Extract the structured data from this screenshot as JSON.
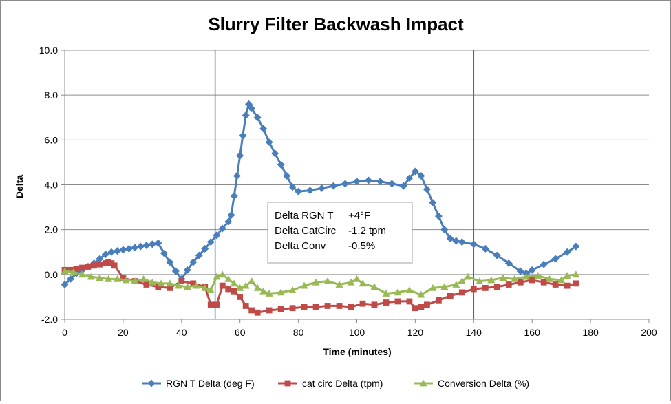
{
  "chart_data": {
    "type": "line",
    "title": "Slurry Filter Backwash Impact",
    "xlabel": "Time (minutes)",
    "ylabel": "Delta",
    "xlim": [
      0,
      200
    ],
    "ylim": [
      -2,
      10
    ],
    "x_ticks": [
      "0",
      "20",
      "40",
      "60",
      "80",
      "100",
      "120",
      "140",
      "160",
      "180",
      "200"
    ],
    "y_ticks": [
      "-2.0",
      "0.0",
      "2.0",
      "4.0",
      "6.0",
      "8.0",
      "10.0"
    ],
    "vertical_lines": [
      51.5,
      140
    ],
    "grid": true,
    "legend_position": "bottom",
    "annotation": {
      "rows": [
        {
          "label": "Delta RGN T",
          "value": "+4°F"
        },
        {
          "label": "Delta CatCirc",
          "value": "-1.2 tpm"
        },
        {
          "label": "Delta Conv",
          "value": "-0.5%"
        }
      ]
    },
    "series": [
      {
        "name": "RGN T Delta (deg F)",
        "color": "#4a7ebb",
        "marker": "diamond",
        "x": [
          0,
          2,
          4,
          6,
          8,
          10,
          12,
          14,
          16,
          18,
          20,
          22,
          24,
          26,
          28,
          30,
          32,
          34,
          36,
          38,
          40,
          42,
          44,
          46,
          48,
          50,
          52,
          54,
          56,
          57,
          58,
          59,
          60,
          61,
          62,
          63,
          64,
          66,
          68,
          70,
          72,
          74,
          76,
          78,
          80,
          84,
          88,
          92,
          96,
          100,
          104,
          108,
          112,
          116,
          118,
          120,
          122,
          124,
          126,
          128,
          130,
          132,
          134,
          136,
          140,
          144,
          148,
          152,
          156,
          158,
          160,
          164,
          168,
          172,
          175
        ],
        "y": [
          -0.45,
          -0.2,
          0.05,
          0.2,
          0.35,
          0.5,
          0.7,
          0.9,
          1.0,
          1.05,
          1.1,
          1.15,
          1.2,
          1.25,
          1.3,
          1.35,
          1.4,
          0.95,
          0.55,
          0.15,
          -0.2,
          0.2,
          0.55,
          0.85,
          1.15,
          1.45,
          1.75,
          2.05,
          2.35,
          2.65,
          3.5,
          4.4,
          5.3,
          6.2,
          7.1,
          7.6,
          7.4,
          7.0,
          6.5,
          5.9,
          5.4,
          4.9,
          4.4,
          3.9,
          3.7,
          3.75,
          3.85,
          3.95,
          4.05,
          4.15,
          4.2,
          4.15,
          4.05,
          3.95,
          4.3,
          4.6,
          4.4,
          3.8,
          3.2,
          2.6,
          2.0,
          1.6,
          1.5,
          1.45,
          1.35,
          1.15,
          0.85,
          0.5,
          0.15,
          0.05,
          0.2,
          0.45,
          0.7,
          1.0,
          1.25
        ]
      },
      {
        "name": "cat circ Delta (tpm)",
        "color": "#be4b48",
        "marker": "square",
        "x": [
          0,
          2,
          4,
          6,
          8,
          10,
          12,
          14,
          15,
          16,
          17,
          20,
          24,
          28,
          32,
          36,
          40,
          44,
          48,
          50,
          52,
          54,
          56,
          58,
          60,
          62,
          64,
          66,
          70,
          74,
          78,
          82,
          86,
          90,
          94,
          98,
          102,
          106,
          110,
          114,
          118,
          120,
          122,
          124,
          128,
          132,
          136,
          140,
          144,
          148,
          152,
          156,
          160,
          164,
          168,
          172,
          175
        ],
        "y": [
          0.2,
          0.2,
          0.25,
          0.3,
          0.35,
          0.4,
          0.45,
          0.5,
          0.55,
          0.5,
          0.4,
          -0.15,
          -0.3,
          -0.45,
          -0.55,
          -0.6,
          -0.3,
          -0.4,
          -0.55,
          -1.35,
          -1.35,
          -0.5,
          -0.65,
          -0.75,
          -1.0,
          -1.4,
          -1.6,
          -1.7,
          -1.6,
          -1.55,
          -1.5,
          -1.45,
          -1.45,
          -1.4,
          -1.4,
          -1.45,
          -1.3,
          -1.35,
          -1.25,
          -1.2,
          -1.2,
          -1.5,
          -1.45,
          -1.35,
          -1.15,
          -0.95,
          -0.8,
          -0.65,
          -0.6,
          -0.55,
          -0.45,
          -0.35,
          -0.25,
          -0.35,
          -0.45,
          -0.5,
          -0.4
        ]
      },
      {
        "name": "Conversion Delta (%)",
        "color": "#98b954",
        "marker": "triangle",
        "x": [
          0,
          3,
          6,
          9,
          12,
          15,
          18,
          21,
          24,
          27,
          30,
          33,
          36,
          39,
          42,
          45,
          48,
          50,
          52,
          54,
          56,
          58,
          60,
          62,
          64,
          66,
          68,
          70,
          74,
          78,
          82,
          86,
          90,
          94,
          98,
          100,
          102,
          106,
          110,
          114,
          118,
          122,
          126,
          130,
          134,
          136,
          138,
          142,
          146,
          150,
          154,
          158,
          162,
          166,
          170,
          172,
          175
        ],
        "y": [
          0.15,
          0.1,
          0.0,
          -0.1,
          -0.15,
          -0.2,
          -0.2,
          -0.25,
          -0.3,
          -0.2,
          -0.35,
          -0.4,
          -0.4,
          -0.5,
          -0.55,
          -0.5,
          -0.6,
          -0.7,
          -0.1,
          0.0,
          -0.2,
          -0.4,
          -0.6,
          -0.5,
          -0.3,
          -0.6,
          -0.75,
          -0.85,
          -0.8,
          -0.7,
          -0.5,
          -0.35,
          -0.3,
          -0.45,
          -0.35,
          -0.2,
          -0.4,
          -0.55,
          -0.85,
          -0.8,
          -0.7,
          -0.9,
          -0.6,
          -0.55,
          -0.45,
          -0.3,
          -0.1,
          -0.3,
          -0.25,
          -0.15,
          -0.2,
          -0.1,
          -0.05,
          -0.2,
          -0.25,
          -0.05,
          0.0
        ]
      }
    ]
  }
}
